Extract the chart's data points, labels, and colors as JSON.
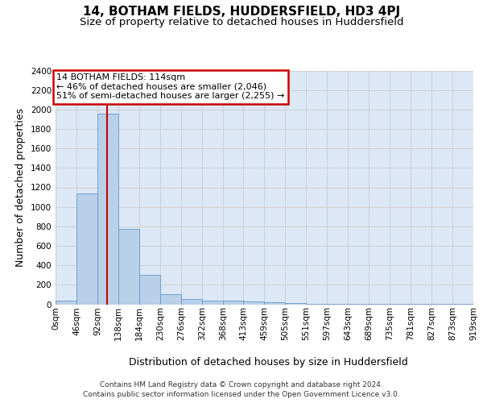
{
  "title": "14, BOTHAM FIELDS, HUDDERSFIELD, HD3 4PJ",
  "subtitle": "Size of property relative to detached houses in Huddersfield",
  "xlabel": "Distribution of detached houses by size in Huddersfield",
  "ylabel": "Number of detached properties",
  "footer_line1": "Contains HM Land Registry data © Crown copyright and database right 2024.",
  "footer_line2": "Contains public sector information licensed under the Open Government Licence v3.0.",
  "bar_color": "#b8d0e8",
  "bar_edge_color": "#6699cc",
  "grid_color": "#cccccc",
  "bg_color": "#dce8f5",
  "property_line_color": "#cc0000",
  "property_size": 114,
  "annotation_text": "14 BOTHAM FIELDS: 114sqm\n← 46% of detached houses are smaller (2,046)\n51% of semi-detached houses are larger (2,255) →",
  "annotation_box_color": "#cc0000",
  "bin_edges": [
    0,
    46,
    92,
    138,
    184,
    230,
    276,
    322,
    368,
    413,
    459,
    505,
    551,
    597,
    643,
    689,
    735,
    781,
    827,
    873,
    919
  ],
  "bar_heights": [
    35,
    1140,
    1960,
    770,
    300,
    105,
    50,
    40,
    35,
    25,
    20,
    15,
    5,
    3,
    2,
    1,
    1,
    1,
    1,
    1
  ],
  "tick_labels": [
    "0sqm",
    "46sqm",
    "92sqm",
    "138sqm",
    "184sqm",
    "230sqm",
    "276sqm",
    "322sqm",
    "368sqm",
    "413sqm",
    "459sqm",
    "505sqm",
    "551sqm",
    "597sqm",
    "643sqm",
    "689sqm",
    "735sqm",
    "781sqm",
    "827sqm",
    "873sqm",
    "919sqm"
  ],
  "ylim": [
    0,
    2400
  ],
  "yticks": [
    0,
    200,
    400,
    600,
    800,
    1000,
    1200,
    1400,
    1600,
    1800,
    2000,
    2200,
    2400
  ],
  "title_fontsize": 11,
  "subtitle_fontsize": 9.5,
  "axis_label_fontsize": 9,
  "tick_fontsize": 7.5,
  "footer_fontsize": 6.5,
  "annot_fontsize": 8
}
